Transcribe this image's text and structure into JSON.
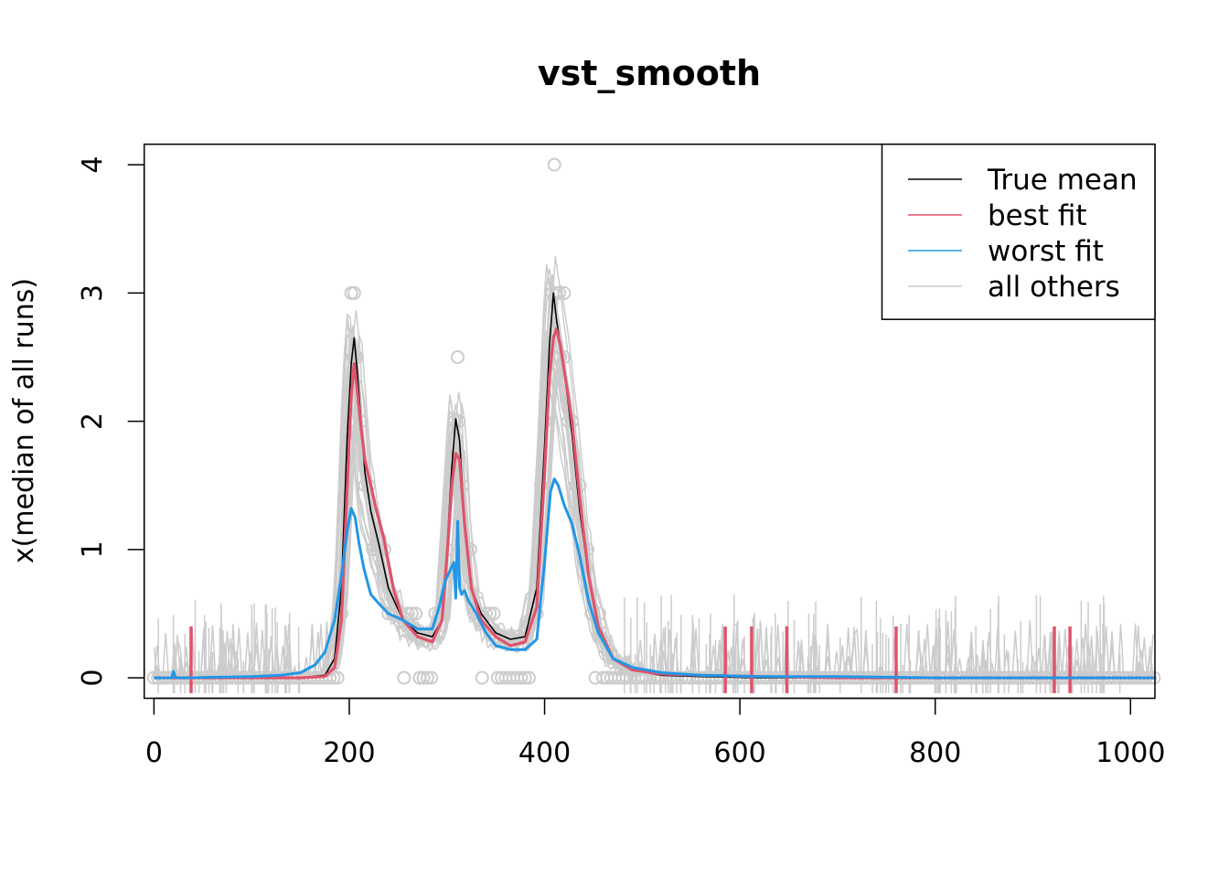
{
  "chart_data": {
    "type": "line",
    "title": "vst_smooth",
    "xlabel": "",
    "ylabel": "x(median of all runs)",
    "xlim": [
      -10,
      1025
    ],
    "ylim": [
      -0.16,
      4.16
    ],
    "x_ticks": [
      0,
      200,
      400,
      600,
      800,
      1000
    ],
    "y_ticks": [
      0,
      1,
      2,
      3,
      4
    ],
    "colors": {
      "true_mean": "#000000",
      "best_fit": "#DF536B",
      "worst_fit": "#2297E6",
      "all_others": "#CCCCCC"
    },
    "legend": {
      "position": "top-right",
      "entries": [
        "True mean",
        "best fit",
        "worst fit",
        "all others"
      ]
    },
    "series": [
      {
        "name": "True mean",
        "x": [
          0,
          150,
          175,
          185,
          192,
          198,
          202,
          205,
          208,
          212,
          216,
          222,
          230,
          240,
          255,
          270,
          285,
          295,
          300,
          305,
          309,
          313,
          318,
          325,
          335,
          350,
          365,
          380,
          392,
          400,
          405,
          409,
          412,
          416,
          420,
          428,
          436,
          445,
          455,
          470,
          490,
          520,
          560,
          620,
          700,
          800,
          1025
        ],
        "y": [
          0,
          0,
          0.02,
          0.15,
          0.7,
          1.9,
          2.45,
          2.65,
          2.4,
          2.0,
          1.6,
          1.3,
          1.05,
          0.7,
          0.45,
          0.35,
          0.32,
          0.45,
          1.0,
          1.65,
          2.02,
          1.85,
          1.2,
          0.7,
          0.5,
          0.35,
          0.3,
          0.32,
          0.7,
          1.8,
          2.6,
          3.0,
          2.8,
          2.6,
          2.4,
          1.9,
          1.3,
          0.8,
          0.4,
          0.15,
          0.06,
          0.02,
          0.01,
          0,
          0,
          0,
          0
        ]
      },
      {
        "name": "best fit",
        "x": [
          0,
          150,
          175,
          185,
          192,
          198,
          202,
          205,
          208,
          212,
          216,
          222,
          228,
          235,
          245,
          255,
          270,
          285,
          295,
          300,
          305,
          309,
          313,
          318,
          325,
          335,
          350,
          365,
          380,
          392,
          400,
          405,
          409,
          412,
          416,
          420,
          428,
          436,
          445,
          455,
          470,
          490,
          520,
          560,
          620,
          700,
          800,
          1025
        ],
        "y": [
          0,
          0,
          0.01,
          0.08,
          0.45,
          1.5,
          2.2,
          2.45,
          2.25,
          1.95,
          1.7,
          1.5,
          1.3,
          1.1,
          0.7,
          0.45,
          0.32,
          0.28,
          0.45,
          0.95,
          1.5,
          1.75,
          1.7,
          1.2,
          0.7,
          0.45,
          0.32,
          0.25,
          0.28,
          0.55,
          1.6,
          2.35,
          2.65,
          2.72,
          2.6,
          2.4,
          2.0,
          1.4,
          0.8,
          0.4,
          0.15,
          0.06,
          0.03,
          0.02,
          0.01,
          0,
          0,
          0
        ]
      },
      {
        "name": "worst fit",
        "x": [
          0,
          10,
          18,
          20,
          22,
          30,
          100,
          130,
          150,
          165,
          175,
          185,
          192,
          198,
          202,
          206,
          210,
          215,
          222,
          230,
          240,
          255,
          270,
          285,
          292,
          298,
          304,
          307,
          309,
          311,
          313,
          315,
          318,
          322,
          330,
          340,
          350,
          365,
          380,
          392,
          400,
          406,
          410,
          414,
          420,
          428,
          436,
          445,
          455,
          470,
          490,
          520,
          560,
          620,
          700,
          800,
          1025
        ],
        "y": [
          0,
          0,
          0,
          0.05,
          0,
          0,
          0.01,
          0.02,
          0.04,
          0.1,
          0.2,
          0.45,
          0.8,
          1.15,
          1.32,
          1.25,
          1.05,
          0.85,
          0.65,
          0.58,
          0.5,
          0.45,
          0.38,
          0.38,
          0.55,
          0.75,
          0.85,
          0.9,
          0.62,
          1.22,
          0.7,
          0.65,
          0.68,
          0.6,
          0.5,
          0.35,
          0.25,
          0.22,
          0.22,
          0.3,
          0.9,
          1.45,
          1.55,
          1.5,
          1.35,
          1.2,
          0.95,
          0.6,
          0.35,
          0.15,
          0.08,
          0.04,
          0.02,
          0.01,
          0.01,
          0,
          0
        ]
      }
    ]
  }
}
